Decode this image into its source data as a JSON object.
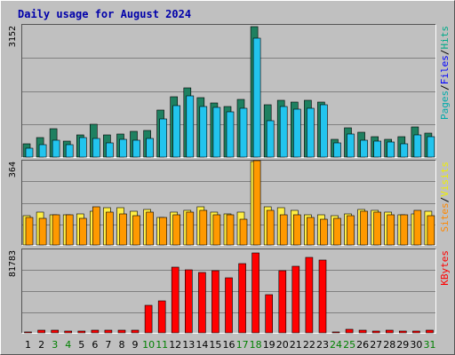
{
  "chart_data": {
    "type": "bar",
    "title": "Daily usage for August 2024",
    "categories": [
      "1",
      "2",
      "3",
      "4",
      "5",
      "6",
      "7",
      "8",
      "9",
      "10",
      "11",
      "12",
      "13",
      "14",
      "15",
      "16",
      "17",
      "18",
      "19",
      "20",
      "21",
      "22",
      "23",
      "24",
      "25",
      "26",
      "27",
      "28",
      "29",
      "30",
      "31"
    ],
    "weekend_days": [
      "3",
      "4",
      "10",
      "11",
      "17",
      "18",
      "24",
      "25",
      "31"
    ],
    "panels": [
      {
        "id": "top",
        "max_label": "3152",
        "ylim": [
          0,
          3152
        ],
        "legend": [
          {
            "text": "Pages",
            "color": "#00aaaa"
          },
          {
            "text": "/",
            "color": "#000000"
          },
          {
            "text": "Files",
            "color": "#0000ff"
          },
          {
            "text": "/",
            "color": "#000000"
          },
          {
            "text": "Hits",
            "color": "#00aa88"
          }
        ],
        "series": [
          {
            "name": "Hits",
            "color": "#1e8060",
            "values": [
              320,
              470,
              680,
              380,
              530,
              780,
              530,
              560,
              620,
              630,
              1130,
              1430,
              1640,
              1420,
              1300,
              1200,
              1380,
              3120,
              1240,
              1350,
              1320,
              1350,
              1320,
              420,
              690,
              590,
              480,
              420,
              490,
              720,
              580
            ]
          },
          {
            "name": "Files",
            "color": "#22c4ee",
            "values": [
              220,
              300,
              400,
              300,
              460,
              450,
              330,
              430,
              410,
              450,
              900,
              1230,
              1450,
              1200,
              1190,
              1080,
              1170,
              2840,
              870,
              1200,
              1150,
              1160,
              1250,
              340,
              550,
              410,
              390,
              350,
              310,
              520,
              480
            ]
          }
        ]
      },
      {
        "id": "middle",
        "max_label": "364",
        "ylim": [
          0,
          364
        ],
        "legend": [
          {
            "text": "Sites",
            "color": "#ff8800"
          },
          {
            "text": "/",
            "color": "#000000"
          },
          {
            "text": "Visits",
            "color": "#eeee00"
          }
        ],
        "series": [
          {
            "name": "Visits",
            "color": "#ffee44",
            "values": [
              125,
              140,
              130,
              130,
              135,
              145,
              160,
              160,
              145,
              155,
              120,
              140,
              150,
              165,
              140,
              135,
              140,
              360,
              165,
              160,
              150,
              130,
              130,
              125,
              135,
              155,
              150,
              140,
              130,
              135,
              145
            ]
          },
          {
            "name": "Sites",
            "color": "#ff9900",
            "values": [
              120,
              115,
              130,
              130,
              115,
              165,
              140,
              135,
              125,
              140,
              120,
              130,
              140,
              150,
              130,
              130,
              110,
              364,
              150,
              130,
              130,
              120,
              110,
              115,
              125,
              145,
              140,
              130,
              130,
              150,
              125
            ]
          }
        ]
      },
      {
        "id": "bottom",
        "max_label": "81783",
        "ylim": [
          0,
          81783
        ],
        "legend": [
          {
            "text": "KBytes",
            "color": "#ff0000"
          }
        ],
        "series": [
          {
            "name": "KBytes",
            "color": "#ff0000",
            "values": [
              1200,
              2300,
              2500,
              1500,
              2000,
              2800,
              2200,
              2500,
              2600,
              27000,
              31000,
              64000,
              62000,
              59000,
              61000,
              54000,
              68000,
              78000,
              37000,
              61000,
              65000,
              74000,
              71000,
              1300,
              3500,
              2200,
              1800,
              2600,
              1700,
              2000,
              2300
            ]
          }
        ]
      }
    ]
  }
}
